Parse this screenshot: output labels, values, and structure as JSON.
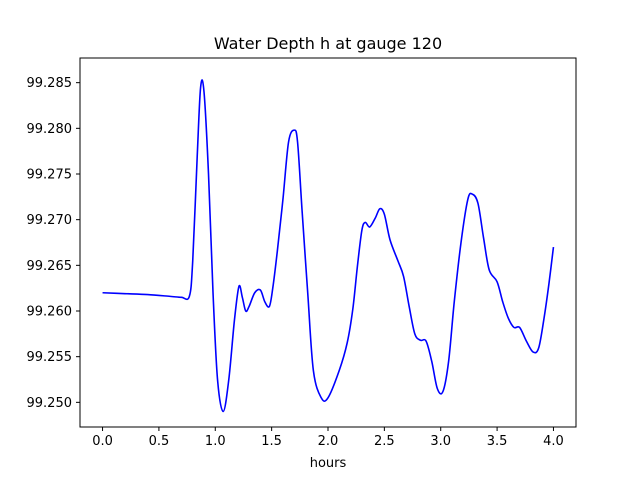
{
  "chart_data": {
    "type": "line",
    "title": "Water Depth h at gauge 120",
    "xlabel": "hours",
    "ylabel": "",
    "xlim": [
      -0.2,
      4.2
    ],
    "ylim": [
      99.2473,
      99.2877
    ],
    "x_ticks": [
      0.0,
      0.5,
      1.0,
      1.5,
      2.0,
      2.5,
      3.0,
      3.5,
      4.0
    ],
    "x_tick_labels": [
      "0.0",
      "0.5",
      "1.0",
      "1.5",
      "2.0",
      "2.5",
      "3.0",
      "3.5",
      "4.0"
    ],
    "y_ticks": [
      99.25,
      99.255,
      99.26,
      99.265,
      99.27,
      99.275,
      99.28,
      99.285
    ],
    "y_tick_labels": [
      "99.250",
      "99.255",
      "99.260",
      "99.265",
      "99.270",
      "99.275",
      "99.280",
      "99.285"
    ],
    "grid": false,
    "line_color": "#0000ff",
    "series": [
      {
        "name": "",
        "x": [
          0.0,
          0.2,
          0.4,
          0.6,
          0.7,
          0.77,
          0.8,
          0.84,
          0.87,
          0.9,
          0.94,
          0.98,
          1.02,
          1.07,
          1.12,
          1.17,
          1.21,
          1.24,
          1.27,
          1.3,
          1.35,
          1.4,
          1.44,
          1.48,
          1.51,
          1.55,
          1.6,
          1.65,
          1.7,
          1.73,
          1.77,
          1.82,
          1.87,
          1.94,
          2.0,
          2.1,
          2.17,
          2.22,
          2.26,
          2.3,
          2.33,
          2.37,
          2.42,
          2.46,
          2.5,
          2.55,
          2.62,
          2.67,
          2.72,
          2.77,
          2.82,
          2.87,
          2.92,
          2.97,
          3.02,
          3.07,
          3.12,
          3.18,
          3.24,
          3.28,
          3.33,
          3.38,
          3.43,
          3.5,
          3.55,
          3.6,
          3.65,
          3.7,
          3.76,
          3.82,
          3.87,
          3.92,
          3.96,
          4.0
        ],
        "values": [
          99.262,
          99.2619,
          99.2618,
          99.2616,
          99.2615,
          99.2616,
          99.2655,
          99.277,
          99.2845,
          99.284,
          99.275,
          99.262,
          99.2525,
          99.249,
          99.2525,
          99.259,
          99.2627,
          99.2615,
          99.26,
          99.2605,
          99.262,
          99.2623,
          99.261,
          99.2605,
          99.2625,
          99.2665,
          99.2722,
          99.2785,
          99.2798,
          99.2785,
          99.271,
          99.262,
          99.2535,
          99.2505,
          99.2505,
          99.2535,
          99.2565,
          99.2602,
          99.2648,
          99.2688,
          99.2697,
          99.2692,
          99.2702,
          99.2712,
          99.2706,
          99.2678,
          99.2655,
          99.2638,
          99.2605,
          99.2575,
          99.2568,
          99.2567,
          99.2545,
          99.2515,
          99.2512,
          99.2545,
          99.261,
          99.2675,
          99.2722,
          99.2728,
          99.2718,
          99.268,
          99.2645,
          99.2632,
          99.261,
          99.2592,
          99.2582,
          99.2582,
          99.2567,
          99.2555,
          99.256,
          99.2595,
          99.263,
          99.267
        ]
      }
    ]
  }
}
